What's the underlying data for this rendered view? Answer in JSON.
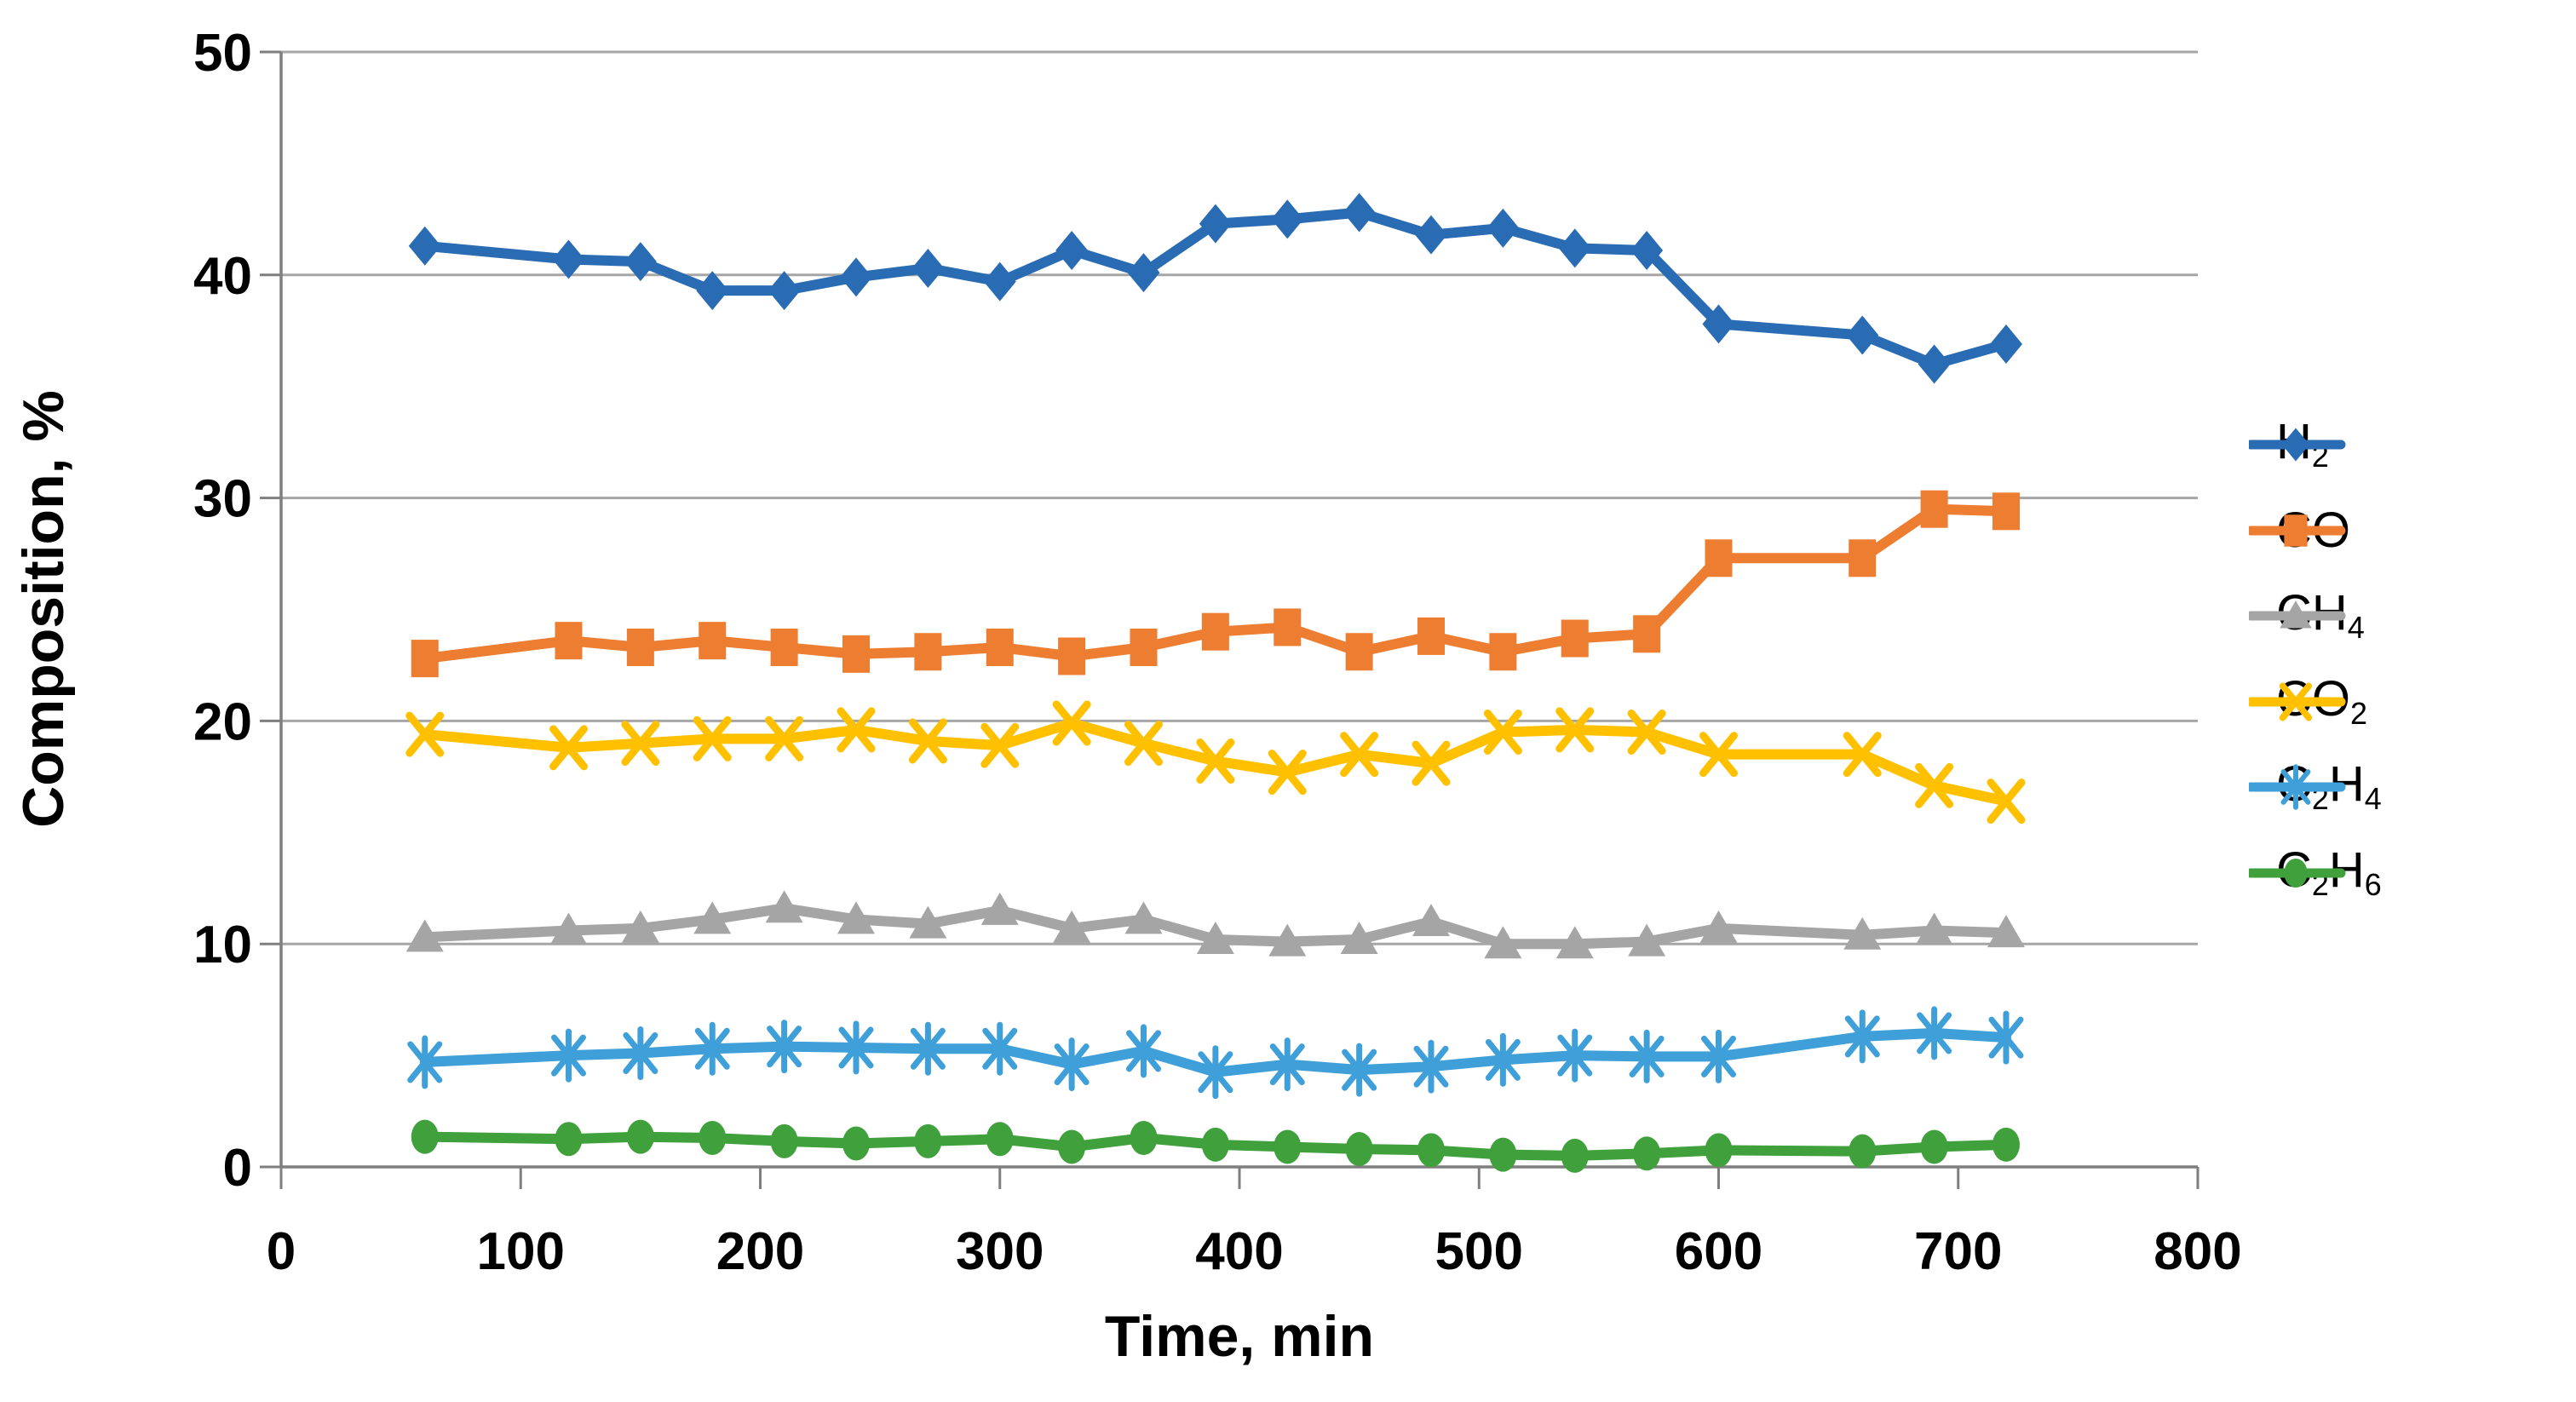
{
  "chart_data": {
    "type": "line",
    "title": "",
    "xlabel": "Time, min",
    "ylabel": "Composition, %",
    "xlim": [
      0,
      800
    ],
    "xtick_step": 100,
    "ylim": [
      0,
      50
    ],
    "ytick_step": 10,
    "grid": "horizontal",
    "legend_position": "right",
    "background": "#ffffff",
    "gridline_color": "#a6a6a6",
    "axis_color": "#7f7f7f",
    "x": [
      60,
      120,
      150,
      180,
      210,
      240,
      270,
      300,
      330,
      360,
      390,
      420,
      450,
      480,
      510,
      540,
      570,
      600,
      660,
      690,
      720
    ],
    "series": [
      {
        "name": "H2",
        "label_parts": [
          {
            "text": "H",
            "sub": false
          },
          {
            "text": "2",
            "sub": true
          }
        ],
        "color": "#2A6CB4",
        "marker": "diamond",
        "values": [
          41.3,
          40.7,
          40.6,
          39.3,
          39.3,
          39.9,
          40.3,
          39.7,
          41.1,
          40.1,
          42.3,
          42.5,
          42.8,
          41.8,
          42.1,
          41.2,
          41.1,
          37.8,
          37.3,
          36.0,
          36.9
        ]
      },
      {
        "name": "CO",
        "label_parts": [
          {
            "text": "CO",
            "sub": false
          }
        ],
        "color": "#ED7D31",
        "marker": "square",
        "values": [
          22.8,
          23.6,
          23.3,
          23.6,
          23.3,
          23.0,
          23.1,
          23.3,
          22.9,
          23.3,
          24.0,
          24.2,
          23.1,
          23.8,
          23.1,
          23.7,
          23.9,
          27.3,
          27.3,
          29.5,
          29.4
        ]
      },
      {
        "name": "CH4",
        "label_parts": [
          {
            "text": "CH",
            "sub": false
          },
          {
            "text": "4",
            "sub": true
          }
        ],
        "color": "#A5A5A5",
        "marker": "triangle",
        "values": [
          10.3,
          10.6,
          10.7,
          11.1,
          11.6,
          11.1,
          10.9,
          11.5,
          10.7,
          11.1,
          10.2,
          10.1,
          10.2,
          11.0,
          10.0,
          10.0,
          10.1,
          10.7,
          10.4,
          10.6,
          10.5
        ]
      },
      {
        "name": "CO2",
        "label_parts": [
          {
            "text": "CO",
            "sub": false
          },
          {
            "text": "2",
            "sub": true
          }
        ],
        "color": "#FFC000",
        "marker": "x",
        "values": [
          19.4,
          18.8,
          19.0,
          19.2,
          19.2,
          19.6,
          19.1,
          18.9,
          19.9,
          19.0,
          18.2,
          17.7,
          18.5,
          18.1,
          19.5,
          19.6,
          19.5,
          18.5,
          18.5,
          17.1,
          16.4
        ]
      },
      {
        "name": "C2H4",
        "label_parts": [
          {
            "text": "C",
            "sub": false
          },
          {
            "text": "2",
            "sub": true
          },
          {
            "text": "H",
            "sub": false
          },
          {
            "text": "4",
            "sub": true
          }
        ],
        "color": "#3F9FD8",
        "marker": "star",
        "values": [
          4.7,
          5.0,
          5.1,
          5.3,
          5.4,
          5.35,
          5.3,
          5.3,
          4.6,
          5.2,
          4.25,
          4.6,
          4.35,
          4.5,
          4.8,
          5.0,
          4.95,
          4.95,
          5.85,
          6.0,
          5.8
        ]
      },
      {
        "name": "C2H6",
        "label_parts": [
          {
            "text": "C",
            "sub": false
          },
          {
            "text": "2",
            "sub": true
          },
          {
            "text": "H",
            "sub": false
          },
          {
            "text": "6",
            "sub": true
          }
        ],
        "color": "#3FA03C",
        "marker": "circle",
        "values": [
          1.35,
          1.25,
          1.35,
          1.3,
          1.15,
          1.05,
          1.15,
          1.25,
          0.9,
          1.3,
          1.0,
          0.9,
          0.8,
          0.75,
          0.55,
          0.5,
          0.6,
          0.75,
          0.7,
          0.9,
          1.0
        ]
      }
    ]
  }
}
